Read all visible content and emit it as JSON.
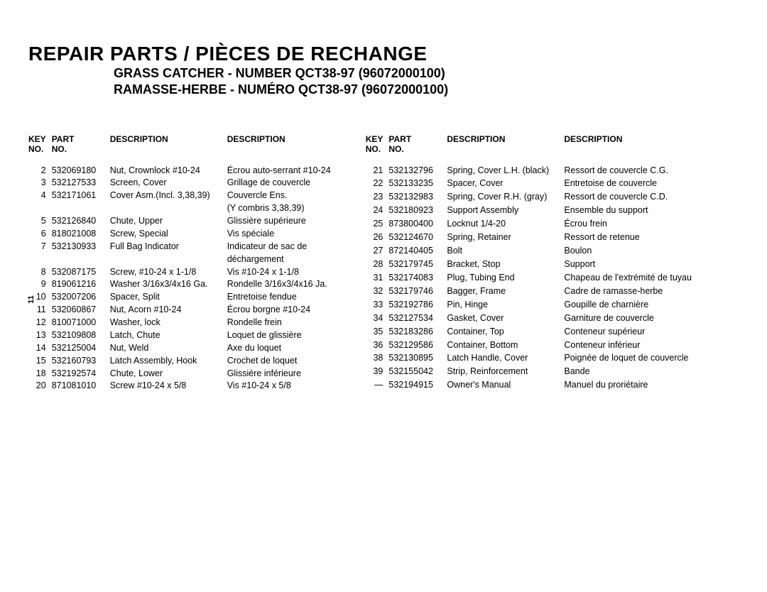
{
  "header": {
    "main_title": "REPAIR PARTS / PIÈCES DE RECHANGE",
    "subtitle_en": "GRASS CATCHER - NUMBER QCT38-97 (96072000100)",
    "subtitle_fr": "RAMASSE-HERBE - NUMÉRO  QCT38-97 (96072000100)"
  },
  "columns": {
    "key": "KEY NO.",
    "part": "PART NO.",
    "desc": "DESCRIPTION"
  },
  "page_number": "11",
  "left_rows": [
    {
      "k": "2",
      "p": "532069180",
      "d1": "Nut, Crownlock #10-24",
      "d2": "Écrou auto-serrant #10-24"
    },
    {
      "k": "3",
      "p": "532127533",
      "d1": "Screen, Cover",
      "d2": "Grillage de couvercle"
    },
    {
      "k": "4",
      "p": "532171061",
      "d1": "Cover Asm.(Incl. 3,38,39)",
      "d2": "Couvercle Ens."
    },
    {
      "k": "",
      "p": "",
      "d1": "",
      "d2": "(Y combris 3,38,39)"
    },
    {
      "k": "5",
      "p": "532126840",
      "d1": "Chute, Upper",
      "d2": "Glissière supérieure"
    },
    {
      "k": "6",
      "p": "818021008",
      "d1": "Screw, Special",
      "d2": "Vis spéciale"
    },
    {
      "k": "7",
      "p": "532130933",
      "d1": "Full Bag Indicator",
      "d2": "Indicateur de sac de"
    },
    {
      "k": "",
      "p": "",
      "d1": "",
      "d2": "déchargement"
    },
    {
      "k": "8",
      "p": "532087175",
      "d1": "Screw, #10-24 x 1-1/8",
      "d2": "Vis #10-24 x 1-1/8"
    },
    {
      "k": "9",
      "p": "819061216",
      "d1": "Washer 3/16x3/4x16 Ga.",
      "d2": "Rondelle 3/16x3/4x16 Ja."
    },
    {
      "k": "10",
      "p": "532007206",
      "d1": "Spacer, Split",
      "d2": "Entretoise fendue"
    },
    {
      "k": "11",
      "p": "532060867",
      "d1": "Nut, Acorn #10-24",
      "d2": "Écrou borgne #10-24"
    },
    {
      "k": "12",
      "p": "810071000",
      "d1": "Washer, lock",
      "d2": "Rondelle frein"
    },
    {
      "k": "13",
      "p": "532109808",
      "d1": "Latch, Chute",
      "d2": "Loquet de glissière"
    },
    {
      "k": "14",
      "p": "532125004",
      "d1": "Nut, Weld",
      "d2": "Axe du loquet"
    },
    {
      "k": "15",
      "p": "532160793",
      "d1": "Latch Assembly, Hook",
      "d2": "Crochet de loquet"
    },
    {
      "k": "18",
      "p": "532192574",
      "d1": "Chute, Lower",
      "d2": "Glissière inférieure"
    },
    {
      "k": "20",
      "p": "871081010",
      "d1": "Screw #10-24 x 5/8",
      "d2": "Vis #10-24 x 5/8"
    }
  ],
  "right_rows": [
    {
      "k": "21",
      "p": "532132796",
      "d1": "Spring, Cover L.H. (black)",
      "d2": "Ressort de couvercle C.G."
    },
    {
      "k": "22",
      "p": "532133235",
      "d1": "Spacer, Cover",
      "d2": "Entretoise de couvercle"
    },
    {
      "k": "23",
      "p": "532132983",
      "d1": "Spring, Cover R.H. (gray)",
      "d2": "Ressort de couvercle C.D."
    },
    {
      "k": "24",
      "p": "532180923",
      "d1": "Support Assembly",
      "d2": "Ensemble du support"
    },
    {
      "k": "25",
      "p": "873800400",
      "d1": "Locknut 1/4-20",
      "d2": "Écrou frein"
    },
    {
      "k": "26",
      "p": "532124670",
      "d1": "Spring, Retainer",
      "d2": "Ressort de retenue"
    },
    {
      "k": "27",
      "p": "872140405",
      "d1": "Bolt",
      "d2": "Boulon"
    },
    {
      "k": "28",
      "p": "532179745",
      "d1": "Bracket, Stop",
      "d2": "Support"
    },
    {
      "k": "31",
      "p": "532174083",
      "d1": "Plug, Tubing End",
      "d2": "Chapeau de l'extrémité de tuyau"
    },
    {
      "k": "32",
      "p": "532179746",
      "d1": "Bagger, Frame",
      "d2": "Cadre de ramasse-herbe"
    },
    {
      "k": "33",
      "p": "532192786",
      "d1": "Pin, Hinge",
      "d2": "Goupille de charnière"
    },
    {
      "k": "34",
      "p": "532127534",
      "d1": "Gasket, Cover",
      "d2": "Garniture de couvercle"
    },
    {
      "k": "35",
      "p": "532183286",
      "d1": "Container, Top",
      "d2": "Conteneur supérieur"
    },
    {
      "k": "36",
      "p": "532129586",
      "d1": "Container, Bottom",
      "d2": "Conteneur inférieur"
    },
    {
      "k": "38",
      "p": "532130895",
      "d1": "Latch Handle, Cover",
      "d2": "Poignée de loquet de couvercle"
    },
    {
      "k": "39",
      "p": "532155042",
      "d1": "Strip, Reinforcement",
      "d2": "Bande"
    },
    {
      "k": "—",
      "p": "532194915",
      "d1": "Owner's Manual",
      "d2": "Manuel du proriétaire"
    }
  ]
}
